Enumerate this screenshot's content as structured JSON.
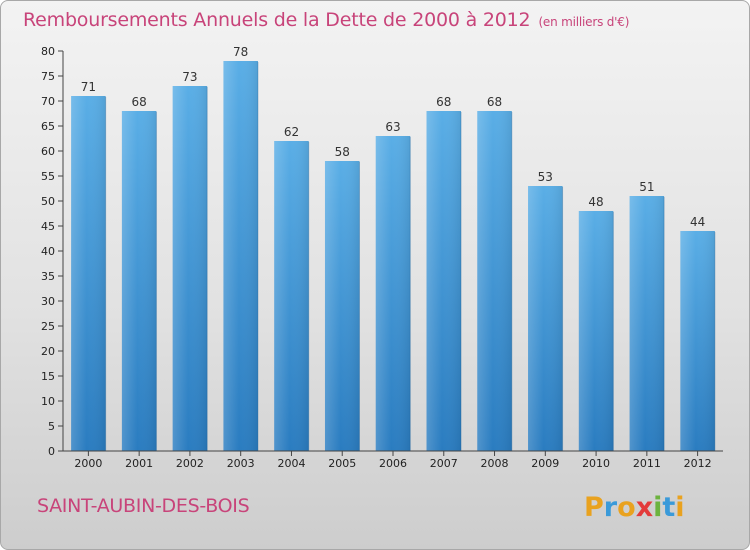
{
  "header": {
    "title": "Remboursements Annuels de la Dette de 2000 à 2012",
    "unit": "(en milliers d'€)"
  },
  "footer": {
    "commune": "SAINT-AUBIN-DES-BOIS",
    "logo_text": "Proxiti"
  },
  "colors": {
    "bar_top": "#5aaee6",
    "bar_bottom": "#2a7cc0",
    "title": "#c8447a"
  },
  "chart_data": {
    "type": "bar",
    "categories": [
      "2000",
      "2001",
      "2002",
      "2003",
      "2004",
      "2005",
      "2006",
      "2007",
      "2008",
      "2009",
      "2010",
      "2011",
      "2012"
    ],
    "values": [
      71,
      68,
      73,
      78,
      62,
      58,
      63,
      68,
      68,
      53,
      48,
      51,
      44
    ],
    "ylim": [
      0,
      80
    ],
    "yticks": [
      0,
      5,
      10,
      15,
      20,
      25,
      30,
      35,
      40,
      45,
      50,
      55,
      60,
      65,
      70,
      75,
      80
    ],
    "grid": false,
    "data_labels": true
  }
}
